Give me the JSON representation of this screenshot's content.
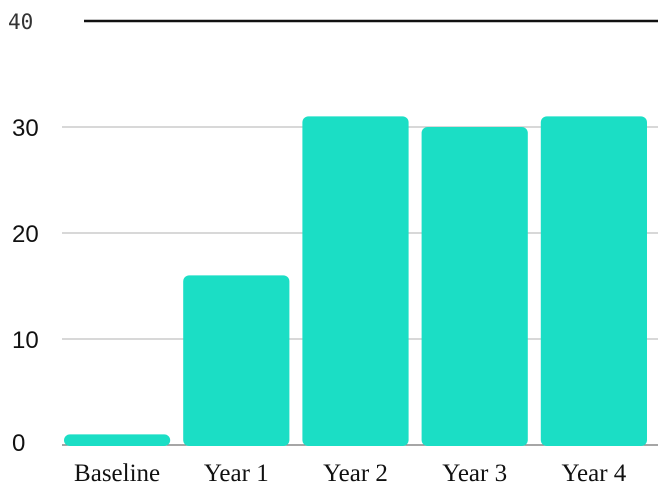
{
  "chart_data": {
    "type": "bar",
    "categories": [
      "Baseline",
      "Year 1",
      "Year 2",
      "Year 3",
      "Year 4"
    ],
    "values": [
      1,
      16,
      31,
      30,
      31
    ],
    "ylim": [
      0,
      40
    ],
    "yticks": [
      0,
      10,
      20,
      30,
      40
    ],
    "grid": true,
    "legend": "none",
    "colors": {
      "bar": "#1BDEC5",
      "grid": "#CCCCCC",
      "top_line": "#111111",
      "baseline": "#888888"
    }
  }
}
